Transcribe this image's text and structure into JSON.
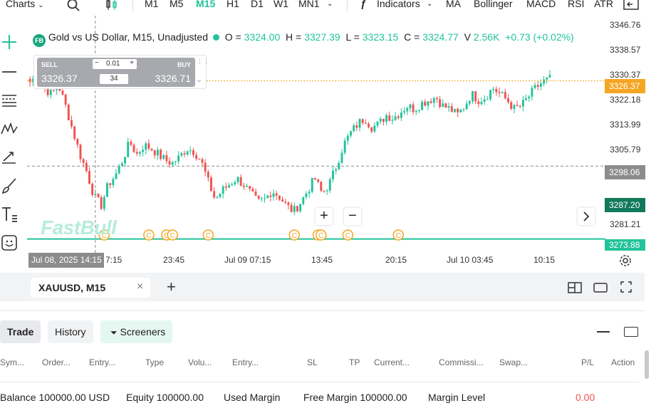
{
  "toolbar": {
    "charts_label": "Charts",
    "timeframes": [
      "M1",
      "M5",
      "M15",
      "H1",
      "D1",
      "W1",
      "MN1"
    ],
    "active_timeframe": "M15",
    "indicators_label": "Indicators",
    "quick_indicators": [
      "MA",
      "Bollinger",
      "MACD",
      "RSI",
      "ATR"
    ]
  },
  "legend": {
    "badge": "FB",
    "symbol_title": "Gold vs US Dollar, M15, Unadjusted",
    "o_label": "O =",
    "o_value": "3324.00",
    "h_label": "H =",
    "h_value": "3327.39",
    "l_label": "L =",
    "l_value": "3323.15",
    "c_label": "C =",
    "c_value": "3324.77",
    "v_label": "V",
    "v_value": "2.56K",
    "change": "+0.73 (+0.02%)"
  },
  "trade_widget": {
    "sell_label": "SELL",
    "sell_price": "3326.37",
    "buy_label": "BUY",
    "buy_price": "3326.71",
    "lot": "0.01",
    "spread": "34",
    "minus": "−",
    "plus": "+"
  },
  "y_axis": {
    "labels": [
      "3346.76",
      "3338.57",
      "3330.37",
      "3322.18",
      "3313.99",
      "3305.79",
      "3281.21"
    ],
    "current_price": "3326.37",
    "crosshair_price": "3298.06",
    "level_price": "3287.20",
    "line_price": "3273.88"
  },
  "x_axis": {
    "crosshair_time": "Jul 08, 2025 14:15",
    "labels": [
      "7:15",
      "23:45",
      "Jul 09 07:15",
      "13:45",
      "20:15",
      "Jul 10 03:45",
      "10:15"
    ]
  },
  "watermark": "FastBull",
  "event_marker": "C",
  "zoom": {
    "plus": "+",
    "minus": "−"
  },
  "chart_tab": {
    "label": "XAUUSD, M15",
    "close": "×",
    "add": "+"
  },
  "bottom_panel": {
    "tabs": [
      "Trade",
      "History",
      "Screeners"
    ],
    "columns": [
      "Sym...",
      "Order...",
      "Entry...",
      "Type",
      "Volu...",
      "Entry...",
      "SL",
      "TP",
      "Current...",
      "Commissi...",
      "Swap...",
      "P/L",
      "Action"
    ],
    "balance": "Balance 100000.00 USD",
    "equity": "Equity 100000.00",
    "used_margin": "Used Margin",
    "free_margin": "Free Margin 100000.00",
    "margin_level": "Margin Level",
    "pl_total": "0.00"
  },
  "colors": {
    "up": "#22c39a",
    "down": "#ef5350",
    "current_price": "#f5a623",
    "crosshair": "#8c8c8c",
    "level": "#127a5c",
    "line": "#22c39a"
  },
  "chart_data": {
    "type": "candlestick",
    "symbol": "XAUUSD",
    "timeframe": "M15",
    "ylim": [
      3270,
      3348
    ],
    "close_path": [
      3326,
      3328,
      3324,
      3322,
      3325,
      3318,
      3310,
      3302,
      3296,
      3288,
      3285,
      3292,
      3295,
      3300,
      3306,
      3302,
      3305,
      3304,
      3302,
      3300,
      3299,
      3301,
      3304,
      3303,
      3300,
      3293,
      3287,
      3290,
      3292,
      3294,
      3292,
      3289,
      3286,
      3287,
      3290,
      3288,
      3285,
      3283,
      3286,
      3290,
      3294,
      3289,
      3292,
      3298,
      3305,
      3309,
      3312,
      3314,
      3311,
      3312,
      3315,
      3314,
      3316,
      3318,
      3317,
      3319,
      3320,
      3321,
      3318,
      3317,
      3315,
      3318,
      3322,
      3320,
      3321,
      3324,
      3322,
      3320,
      3317,
      3318,
      3321,
      3324,
      3326,
      3327
    ],
    "crosshair_index": 9,
    "event_marker_indices": [
      25,
      40,
      46,
      48,
      60,
      89,
      97,
      98,
      107,
      124
    ]
  }
}
